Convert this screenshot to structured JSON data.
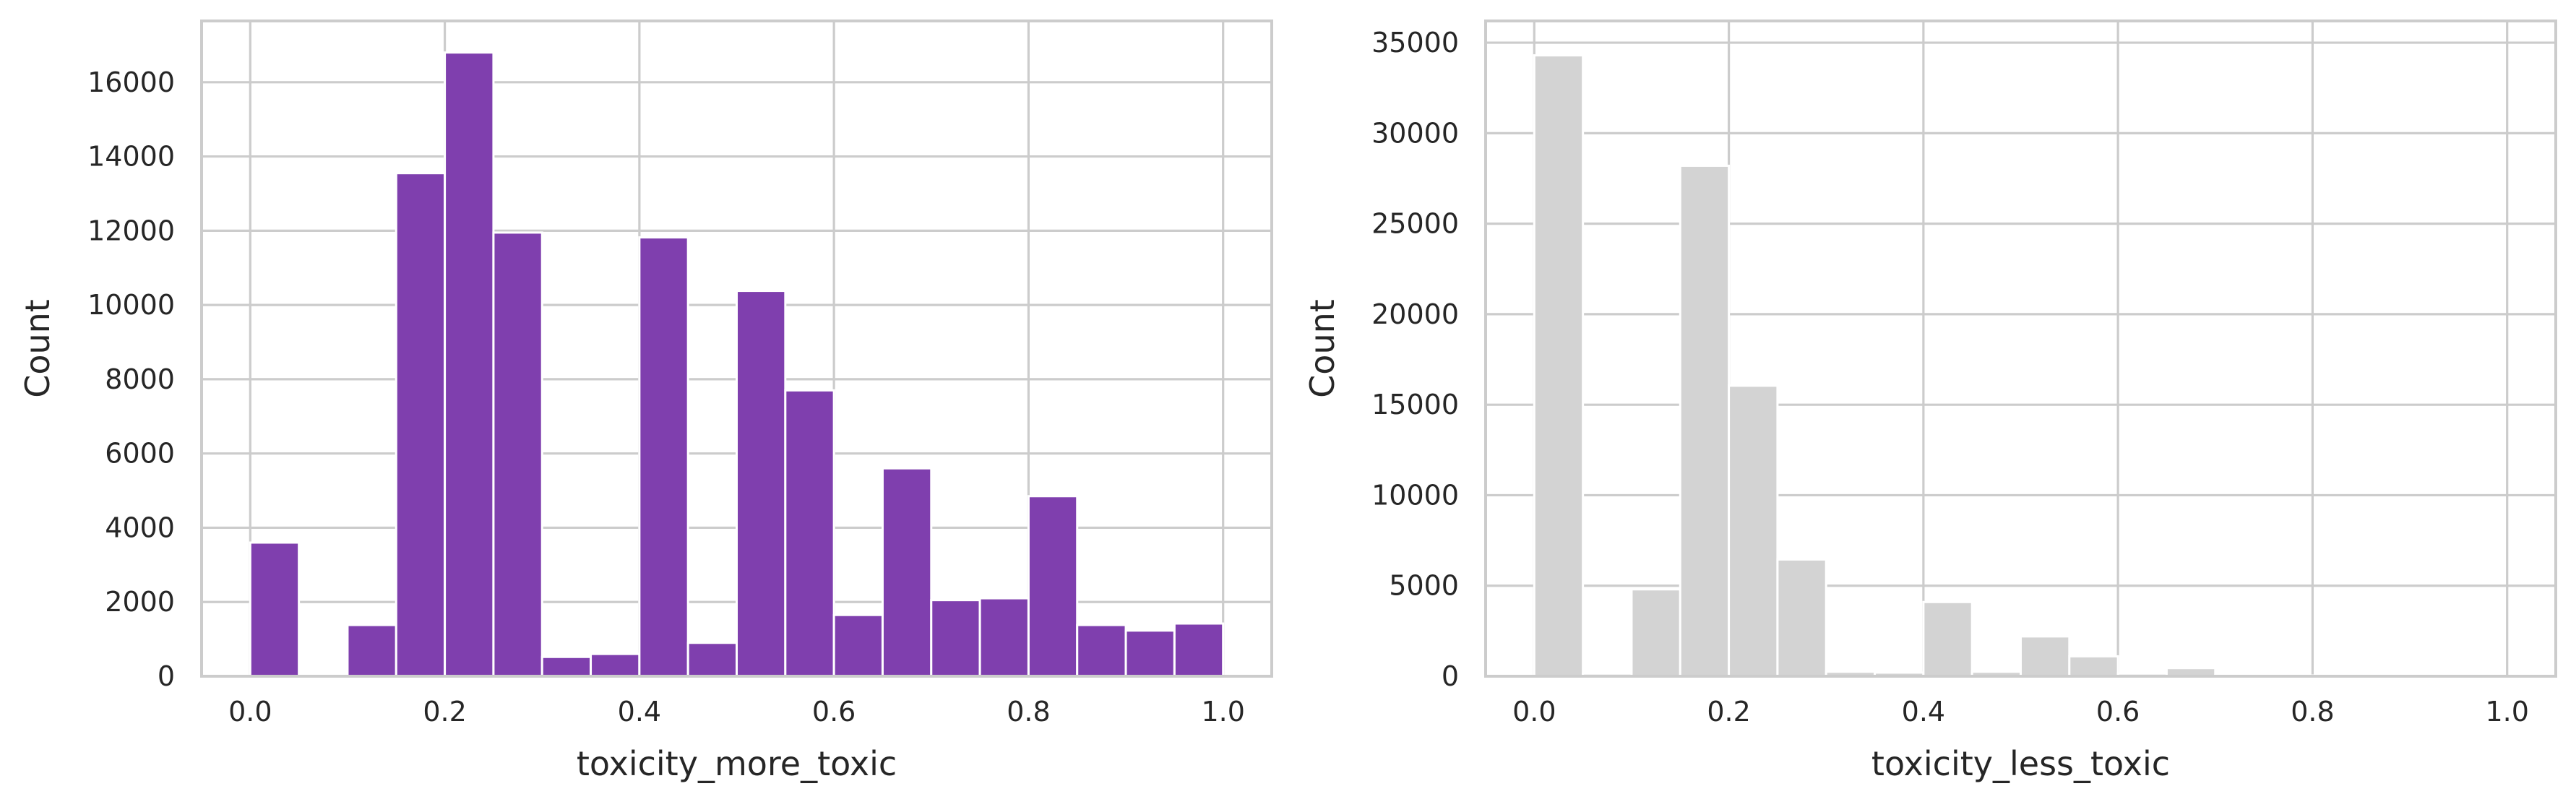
{
  "chart_data": [
    {
      "type": "bar",
      "kind": "histogram",
      "xlabel": "toxicity_more_toxic",
      "ylabel": "Count",
      "xlim": [
        -0.05,
        1.05
      ],
      "ylim": [
        0,
        17650
      ],
      "xticks": [
        0.0,
        0.2,
        0.4,
        0.6,
        0.8,
        1.0
      ],
      "xtick_labels": [
        "0.0",
        "0.2",
        "0.4",
        "0.6",
        "0.8",
        "1.0"
      ],
      "yticks": [
        0,
        2000,
        4000,
        6000,
        8000,
        10000,
        12000,
        14000,
        16000
      ],
      "ytick_labels": [
        "0",
        "2000",
        "4000",
        "6000",
        "8000",
        "10000",
        "12000",
        "14000",
        "16000"
      ],
      "grid": true,
      "color": "#7f3fae",
      "bin_edges": [
        0.0,
        0.05,
        0.1,
        0.15,
        0.2,
        0.25,
        0.3,
        0.35,
        0.4,
        0.45,
        0.5,
        0.55,
        0.6,
        0.65,
        0.7,
        0.75,
        0.8,
        0.85,
        0.9,
        0.95,
        1.0
      ],
      "values": [
        3600,
        0,
        1380,
        13550,
        16800,
        11950,
        520,
        600,
        11820,
        900,
        10380,
        7700,
        1650,
        5600,
        2050,
        2100,
        4850,
        1380,
        1230,
        1420
      ]
    },
    {
      "type": "bar",
      "kind": "histogram",
      "xlabel": "toxicity_less_toxic",
      "ylabel": "Count",
      "xlim": [
        -0.05,
        1.05
      ],
      "ylim": [
        0,
        36200
      ],
      "xticks": [
        0.0,
        0.2,
        0.4,
        0.6,
        0.8,
        1.0
      ],
      "xtick_labels": [
        "0.0",
        "0.2",
        "0.4",
        "0.6",
        "0.8",
        "1.0"
      ],
      "yticks": [
        0,
        5000,
        10000,
        15000,
        20000,
        25000,
        30000,
        35000
      ],
      "ytick_labels": [
        "0",
        "5000",
        "10000",
        "15000",
        "20000",
        "25000",
        "30000",
        "35000"
      ],
      "grid": true,
      "color": "#d3d3d3",
      "bin_edges": [
        0.0,
        0.05,
        0.1,
        0.15,
        0.2,
        0.25,
        0.3,
        0.35,
        0.4,
        0.45,
        0.5,
        0.55,
        0.6,
        0.65,
        0.7,
        0.75,
        0.8,
        0.85,
        0.9,
        0.95,
        1.0
      ],
      "values": [
        34300,
        150,
        4800,
        28200,
        16050,
        6450,
        250,
        200,
        4100,
        250,
        2200,
        1100,
        150,
        450,
        60,
        40,
        40,
        30,
        20,
        20
      ]
    }
  ]
}
